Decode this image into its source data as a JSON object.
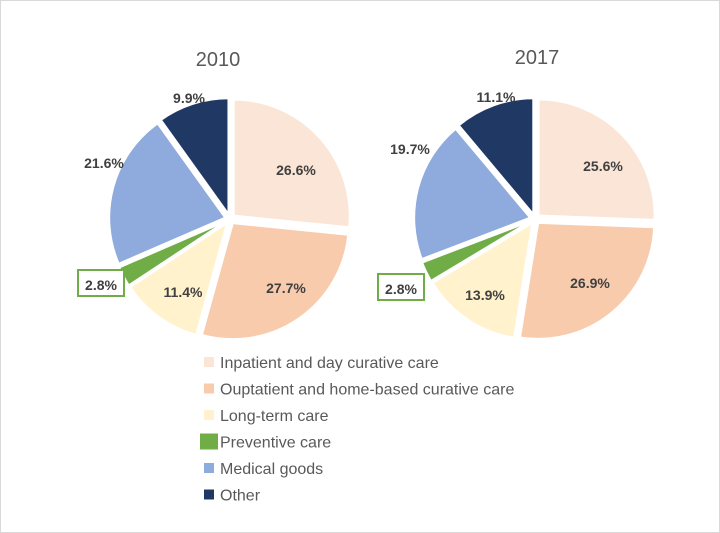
{
  "chart_data": [
    {
      "type": "pie",
      "title": "2010",
      "categories": [
        "Inpatient and day curative care",
        "Ouptatient and home-based curative care",
        "Long-term care",
        "Preventive care",
        "Medical goods",
        "Other"
      ],
      "values": [
        26.6,
        27.7,
        11.4,
        2.8,
        21.6,
        9.9
      ],
      "labels": [
        "26.6%",
        "27.7%",
        "11.4%",
        "2.8%",
        "21.6%",
        "9.9%"
      ],
      "highlighted_category": "Preventive care"
    },
    {
      "type": "pie",
      "title": "2017",
      "categories": [
        "Inpatient and day curative care",
        "Ouptatient and home-based curative care",
        "Long-term care",
        "Preventive care",
        "Medical goods",
        "Other"
      ],
      "values": [
        25.6,
        26.9,
        13.9,
        2.8,
        19.7,
        11.1
      ],
      "labels": [
        "25.6%",
        "26.9%",
        "13.9%",
        "2.8%",
        "19.7%",
        "11.1%"
      ],
      "highlighted_category": "Preventive care"
    }
  ],
  "legend": {
    "placement": "bottom-center",
    "items": [
      {
        "label": "Inpatient and day curative care",
        "color": "#fbe5d6"
      },
      {
        "label": "Ouptatient and home-based curative care",
        "color": "#f8cbad"
      },
      {
        "label": "Long-term care",
        "color": "#fff2cc"
      },
      {
        "label": "Preventive care",
        "color": "#70ad47"
      },
      {
        "label": "Medical goods",
        "color": "#8faadc"
      },
      {
        "label": "Other",
        "color": "#203864"
      }
    ]
  },
  "highlight_color": "#70ad47"
}
